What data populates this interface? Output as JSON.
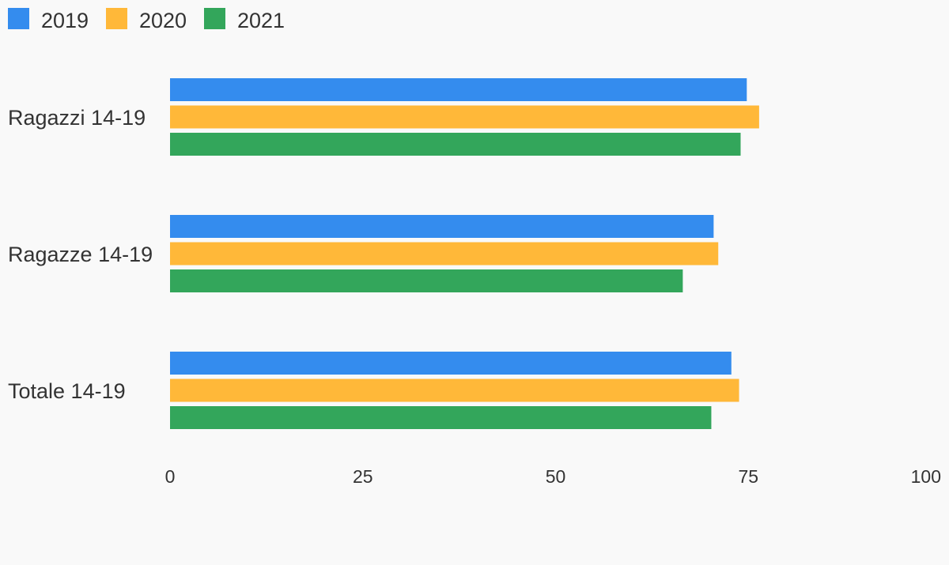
{
  "colors": {
    "background": "#f9f9f9",
    "text": "#333333"
  },
  "chart_data": {
    "type": "bar",
    "orientation": "horizontal",
    "title": "",
    "xlabel": "",
    "ylabel": "",
    "categories": [
      "Ragazzi 14-19",
      "Ragazze 14-19",
      "Totale 14-19"
    ],
    "series": [
      {
        "name": "2019",
        "color": "#348cee",
        "values": [
          74.8,
          70.5,
          72.8
        ]
      },
      {
        "name": "2020",
        "color": "#ffb839",
        "values": [
          76.4,
          71.1,
          73.8
        ]
      },
      {
        "name": "2021",
        "color": "#33a65b",
        "values": [
          74.0,
          66.5,
          70.2
        ]
      }
    ],
    "xlim": [
      0,
      100
    ],
    "x_ticks": [
      "0",
      "25",
      "50",
      "75",
      "100"
    ],
    "grid": false,
    "legend_position": "top-left"
  }
}
